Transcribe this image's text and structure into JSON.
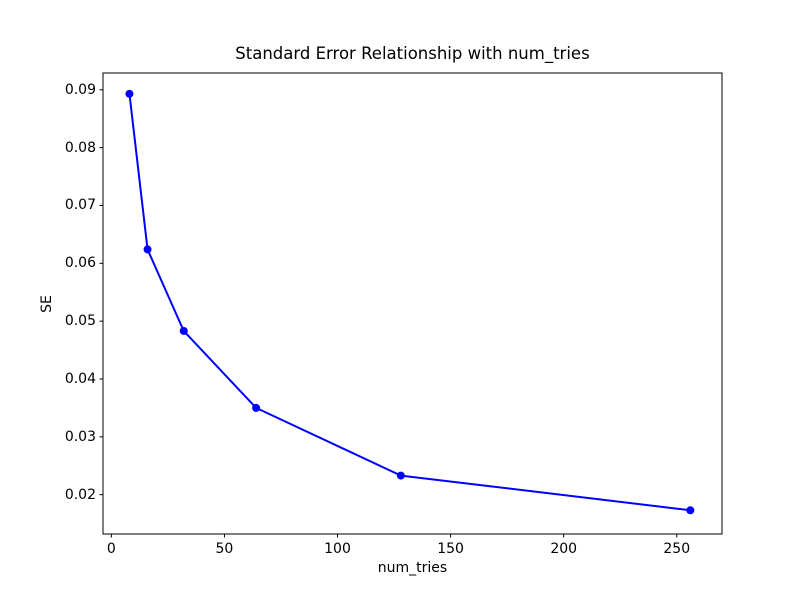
{
  "chart_data": {
    "type": "line",
    "title": "Standard Error Relationship with num_tries",
    "xlabel": "num_tries",
    "ylabel": "SE",
    "x": [
      8,
      16,
      32,
      64,
      128,
      256
    ],
    "series": [
      {
        "name": "SE",
        "values": [
          0.0893,
          0.0624,
          0.0483,
          0.035,
          0.0233,
          0.0173
        ]
      }
    ],
    "xticks": [
      {
        "v": 0,
        "label": "0"
      },
      {
        "v": 50,
        "label": "50"
      },
      {
        "v": 100,
        "label": "100"
      },
      {
        "v": 150,
        "label": "150"
      },
      {
        "v": 200,
        "label": "200"
      },
      {
        "v": 250,
        "label": "250"
      }
    ],
    "yticks": [
      {
        "v": 0.02,
        "label": "0.02"
      },
      {
        "v": 0.03,
        "label": "0.03"
      },
      {
        "v": 0.04,
        "label": "0.04"
      },
      {
        "v": 0.05,
        "label": "0.05"
      },
      {
        "v": 0.06,
        "label": "0.06"
      },
      {
        "v": 0.07,
        "label": "0.07"
      },
      {
        "v": 0.08,
        "label": "0.08"
      },
      {
        "v": 0.09,
        "label": "0.09"
      }
    ],
    "xlim": [
      -3.7,
      270.0
    ],
    "ylim": [
      0.0132,
      0.0929
    ],
    "grid": false,
    "legend": false,
    "line_color": "#0000ff",
    "marker": "circle",
    "frame_color": "#000000",
    "background": "#ffffff",
    "text_color": "#000000"
  }
}
